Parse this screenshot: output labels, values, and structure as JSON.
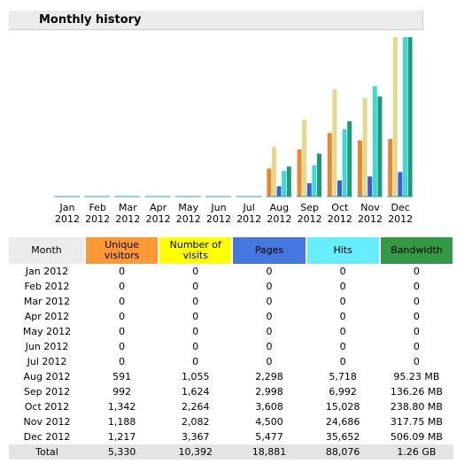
{
  "chart_data": {
    "type": "bar",
    "title": "Monthly history",
    "row_header": "Month",
    "categories": [
      "Jan 2012",
      "Feb 2012",
      "Mar 2012",
      "Apr 2012",
      "May 2012",
      "Jun 2012",
      "Jul 2012",
      "Aug 2012",
      "Sep 2012",
      "Oct 2012",
      "Nov 2012",
      "Dec 2012"
    ],
    "series": [
      {
        "name": "Unique visitors",
        "color": "#e8872f",
        "values": [
          0,
          0,
          0,
          0,
          0,
          0,
          0,
          591,
          992,
          1342,
          1188,
          1217
        ],
        "value_labels": [
          "0",
          "0",
          "0",
          "0",
          "0",
          "0",
          "0",
          "591",
          "992",
          "1,342",
          "1,188",
          "1,217"
        ]
      },
      {
        "name": "Number of visits",
        "color": "#e2d98a",
        "values": [
          0,
          0,
          0,
          0,
          0,
          0,
          0,
          1055,
          1624,
          2264,
          2082,
          3367
        ],
        "value_labels": [
          "0",
          "0",
          "0",
          "0",
          "0",
          "0",
          "0",
          "1,055",
          "1,624",
          "2,264",
          "2,082",
          "3,367"
        ]
      },
      {
        "name": "Pages",
        "color": "#3a5fd0",
        "values": [
          0,
          0,
          0,
          0,
          0,
          0,
          0,
          2298,
          2998,
          3608,
          4500,
          5477
        ],
        "value_labels": [
          "0",
          "0",
          "0",
          "0",
          "0",
          "0",
          "0",
          "2,298",
          "2,998",
          "3,608",
          "4,500",
          "5,477"
        ]
      },
      {
        "name": "Hits",
        "color": "#3fd8d8",
        "values": [
          0,
          0,
          0,
          0,
          0,
          0,
          0,
          5718,
          6992,
          15028,
          24686,
          35652
        ],
        "value_labels": [
          "0",
          "0",
          "0",
          "0",
          "0",
          "0",
          "0",
          "5,718",
          "6,992",
          "15,028",
          "24,686",
          "35,652"
        ]
      },
      {
        "name": "Bandwidth",
        "color": "#1e9a78",
        "values": [
          0,
          0,
          0,
          0,
          0,
          0,
          0,
          95.23,
          136.26,
          238.8,
          317.75,
          506.09
        ],
        "value_labels": [
          "0",
          "0",
          "0",
          "0",
          "0",
          "0",
          "0",
          "95.23 MB",
          "136.26 MB",
          "238.80 MB",
          "317.75 MB",
          "506.09 MB"
        ]
      }
    ],
    "total_label": "Total",
    "totals": [
      "5,330",
      "10,392",
      "18,881",
      "88,076",
      "1.26 GB"
    ]
  }
}
